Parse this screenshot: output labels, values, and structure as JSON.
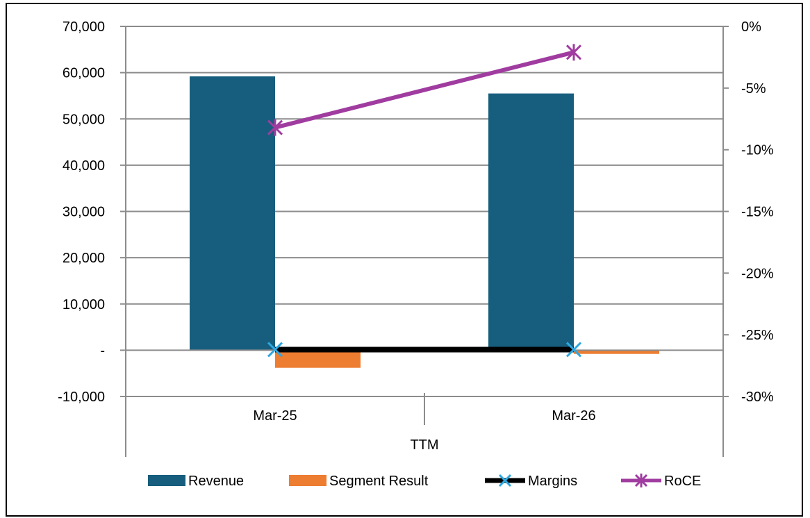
{
  "chart_data": {
    "type": "bar",
    "categories": [
      "Mar-25",
      "Mar-26"
    ],
    "category_group_label": "TTM",
    "y_left": {
      "range": [
        -10000,
        70000
      ],
      "ticks": [
        -10000,
        0,
        10000,
        20000,
        30000,
        40000,
        50000,
        60000,
        70000
      ],
      "tick_labels": [
        "-10,000",
        "-",
        "10,000",
        "20,000",
        "30,000",
        "40,000",
        "50,000",
        "60,000",
        "70,000"
      ]
    },
    "y_right": {
      "range": [
        -30,
        0
      ],
      "ticks": [
        -30,
        -25,
        -20,
        -15,
        -10,
        -5,
        0
      ],
      "tick_labels": [
        "-30%",
        "-25%",
        "-20%",
        "-15%",
        "-10%",
        "-5%",
        "0%"
      ]
    },
    "series": [
      {
        "name": "Revenue",
        "kind": "bar",
        "axis": "left",
        "color": "#175e7e",
        "values": [
          59200,
          55500
        ]
      },
      {
        "name": "Segment Result",
        "kind": "bar",
        "axis": "left",
        "color": "#ed7d31",
        "values": [
          -3800,
          -800
        ]
      },
      {
        "name": "Margins",
        "kind": "line",
        "axis": "right",
        "color": "#000000",
        "marker": "x",
        "marker_color": "#2ea7e0",
        "values": [
          -26.2,
          -26.2
        ]
      },
      {
        "name": "RoCE",
        "kind": "line",
        "axis": "right",
        "color": "#a03ca0",
        "marker": "star",
        "values": [
          -8.2,
          -2.1
        ]
      }
    ],
    "grid": true,
    "legend_position": "bottom"
  }
}
